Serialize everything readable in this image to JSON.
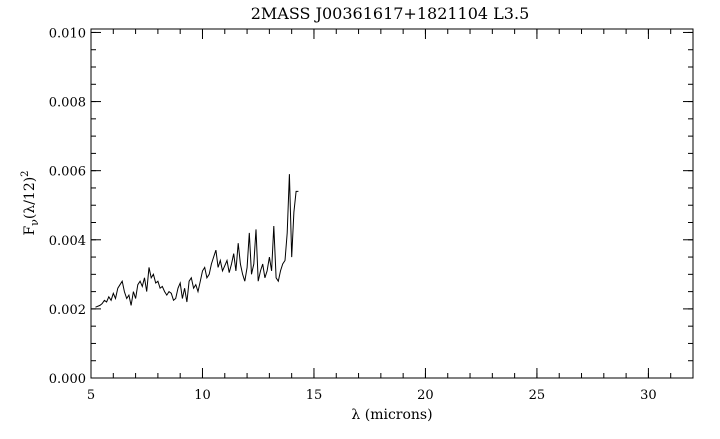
{
  "chart_data": {
    "type": "line",
    "title": "2MASS J00361617+1821104 L3.5",
    "xlabel": "λ (microns)",
    "ylabel": "F",
    "ylabel_sub": "ν",
    "ylabel_tail": "(λ/12)",
    "ylabel_sup": "2",
    "xlim": [
      5,
      32
    ],
    "ylim": [
      0.0,
      0.0101
    ],
    "x_ticks": [
      5,
      10,
      15,
      20,
      25,
      30
    ],
    "x_tick_labels": [
      "5",
      "10",
      "15",
      "20",
      "25",
      "30"
    ],
    "y_ticks": [
      0.0,
      0.002,
      0.004,
      0.006,
      0.008,
      0.01
    ],
    "y_tick_labels": [
      "0.000",
      "0.002",
      "0.004",
      "0.006",
      "0.008",
      "0.010"
    ],
    "x_minor_step": 1,
    "y_minor_step": 0.0005,
    "grid": false,
    "legend": "none",
    "line_color": "#000000",
    "series": [
      {
        "x": [
          5.2,
          5.4,
          5.5,
          5.6,
          5.7,
          5.8,
          5.9,
          6.0,
          6.1,
          6.2,
          6.3,
          6.4,
          6.5,
          6.6,
          6.7,
          6.8,
          6.9,
          7.0,
          7.1,
          7.2,
          7.3,
          7.4,
          7.5,
          7.6,
          7.7,
          7.8,
          7.9,
          8.0,
          8.1,
          8.2,
          8.3,
          8.4,
          8.5,
          8.6,
          8.7,
          8.8,
          8.9,
          9.0,
          9.1,
          9.2,
          9.3,
          9.4,
          9.5,
          9.6,
          9.7,
          9.8,
          9.9,
          10.0,
          10.1,
          10.2,
          10.3,
          10.4,
          10.5,
          10.6,
          10.7,
          10.8,
          10.9,
          11.0,
          11.1,
          11.2,
          11.3,
          11.4,
          11.5,
          11.6,
          11.7,
          11.8,
          11.9,
          12.0,
          12.1,
          12.2,
          12.3,
          12.4,
          12.5,
          12.6,
          12.7,
          12.8,
          12.9,
          13.0,
          13.1,
          13.2,
          13.3,
          13.4,
          13.5,
          13.6,
          13.7,
          13.8,
          13.9,
          14.0,
          14.1,
          14.2,
          14.3
        ],
        "y": [
          0.00205,
          0.0021,
          0.00215,
          0.00225,
          0.0022,
          0.00235,
          0.00225,
          0.00245,
          0.0023,
          0.0026,
          0.0027,
          0.0028,
          0.0025,
          0.0023,
          0.0024,
          0.0021,
          0.0025,
          0.0023,
          0.0027,
          0.0028,
          0.00265,
          0.0029,
          0.0025,
          0.0032,
          0.0029,
          0.003,
          0.00275,
          0.0028,
          0.0026,
          0.00265,
          0.0025,
          0.0024,
          0.0025,
          0.00245,
          0.00225,
          0.0023,
          0.0026,
          0.00275,
          0.0023,
          0.0026,
          0.0022,
          0.0028,
          0.0029,
          0.0026,
          0.0027,
          0.0025,
          0.0028,
          0.0031,
          0.0032,
          0.0029,
          0.003,
          0.0033,
          0.0035,
          0.0037,
          0.0032,
          0.0034,
          0.0031,
          0.00325,
          0.0034,
          0.00305,
          0.0033,
          0.0036,
          0.0031,
          0.0039,
          0.0033,
          0.003,
          0.0028,
          0.0032,
          0.0042,
          0.003,
          0.0033,
          0.0043,
          0.0028,
          0.0031,
          0.0033,
          0.0029,
          0.0031,
          0.0035,
          0.0031,
          0.0044,
          0.0029,
          0.0028,
          0.0031,
          0.0033,
          0.0034,
          0.0042,
          0.0059,
          0.0035,
          0.0048,
          0.0054,
          0.0054
        ]
      }
    ]
  }
}
